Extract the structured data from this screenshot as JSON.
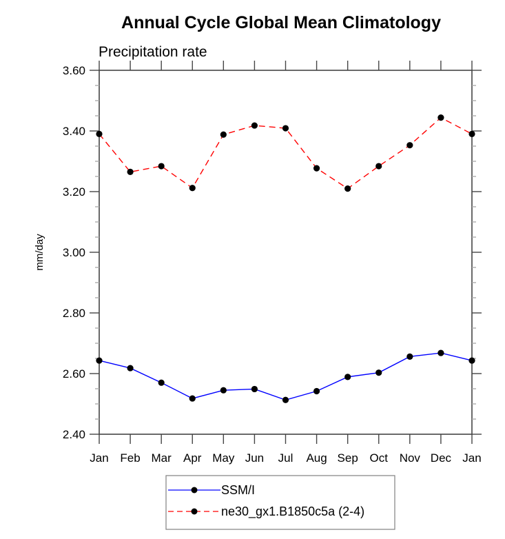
{
  "chart_data": {
    "type": "line",
    "title": "Annual Cycle Global Mean Climatology",
    "subtitle": "Precipitation rate",
    "xlabel": "",
    "ylabel": "mm/day",
    "categories": [
      "Jan",
      "Feb",
      "Mar",
      "Apr",
      "May",
      "Jun",
      "Jul",
      "Aug",
      "Sep",
      "Oct",
      "Nov",
      "Dec",
      "Jan"
    ],
    "ylim": [
      2.4,
      3.6
    ],
    "yticks": [
      2.4,
      2.6,
      2.8,
      3.0,
      3.2,
      3.4,
      3.6
    ],
    "ytick_labels": [
      "2.40",
      "2.60",
      "2.80",
      "3.00",
      "3.20",
      "3.40",
      "3.60"
    ],
    "yminor_step": 0.05,
    "grid": false,
    "legend_position": "bottom-center",
    "series": [
      {
        "name": "SSM/I",
        "color": "#0000ff",
        "line_style": "solid",
        "marker": "filled-circle",
        "values": [
          2.643,
          2.618,
          2.57,
          2.518,
          2.545,
          2.549,
          2.513,
          2.542,
          2.589,
          2.603,
          2.656,
          2.668,
          2.643
        ]
      },
      {
        "name": "ne30_gx1.B1850c5a (2-4)",
        "color": "#ff0000",
        "line_style": "dashed",
        "marker": "filled-circle",
        "values": [
          3.39,
          3.265,
          3.284,
          3.212,
          3.388,
          3.418,
          3.409,
          3.277,
          3.21,
          3.284,
          3.353,
          3.444,
          3.39
        ]
      }
    ]
  }
}
